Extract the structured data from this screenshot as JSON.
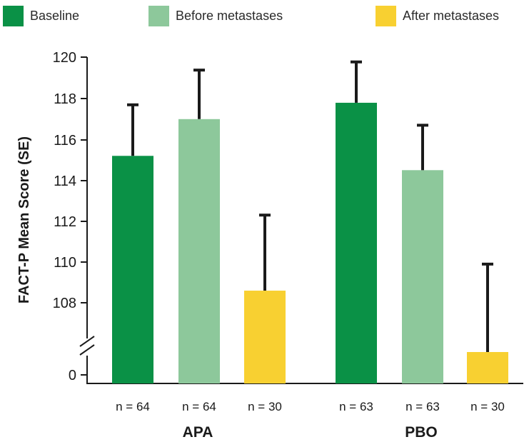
{
  "chart_data": {
    "type": "bar",
    "ylabel": "FACT-P Mean Score (SE)",
    "y_ticks": [
      "120",
      "118",
      "116",
      "114",
      "112",
      "110",
      "108",
      "0"
    ],
    "y_range": [
      106,
      120
    ],
    "y_axis_break": true,
    "legend_position": "top",
    "series": [
      {
        "name": "Baseline",
        "color": "#0a9146"
      },
      {
        "name": "Before metastases",
        "color": "#8dc89b"
      },
      {
        "name": "After metastases",
        "color": "#f8d031"
      }
    ],
    "groups": [
      {
        "name": "APA",
        "bars": [
          {
            "series": "Baseline",
            "value": 115.2,
            "se": 2.5,
            "n_label": "n = 64"
          },
          {
            "series": "Before metastases",
            "value": 117.0,
            "se": 2.4,
            "n_label": "n = 64"
          },
          {
            "series": "After metastases",
            "value": 108.6,
            "se": 3.7,
            "n_label": "n = 30"
          }
        ]
      },
      {
        "name": "PBO",
        "bars": [
          {
            "series": "Baseline",
            "value": 117.8,
            "se": 2.0,
            "n_label": "n = 63"
          },
          {
            "series": "Before metastases",
            "value": 114.5,
            "se": 2.2,
            "n_label": "n = 63"
          },
          {
            "series": "After metastases",
            "value": 105.5,
            "se": 4.4,
            "n_label": "n = 30"
          }
        ]
      }
    ]
  }
}
